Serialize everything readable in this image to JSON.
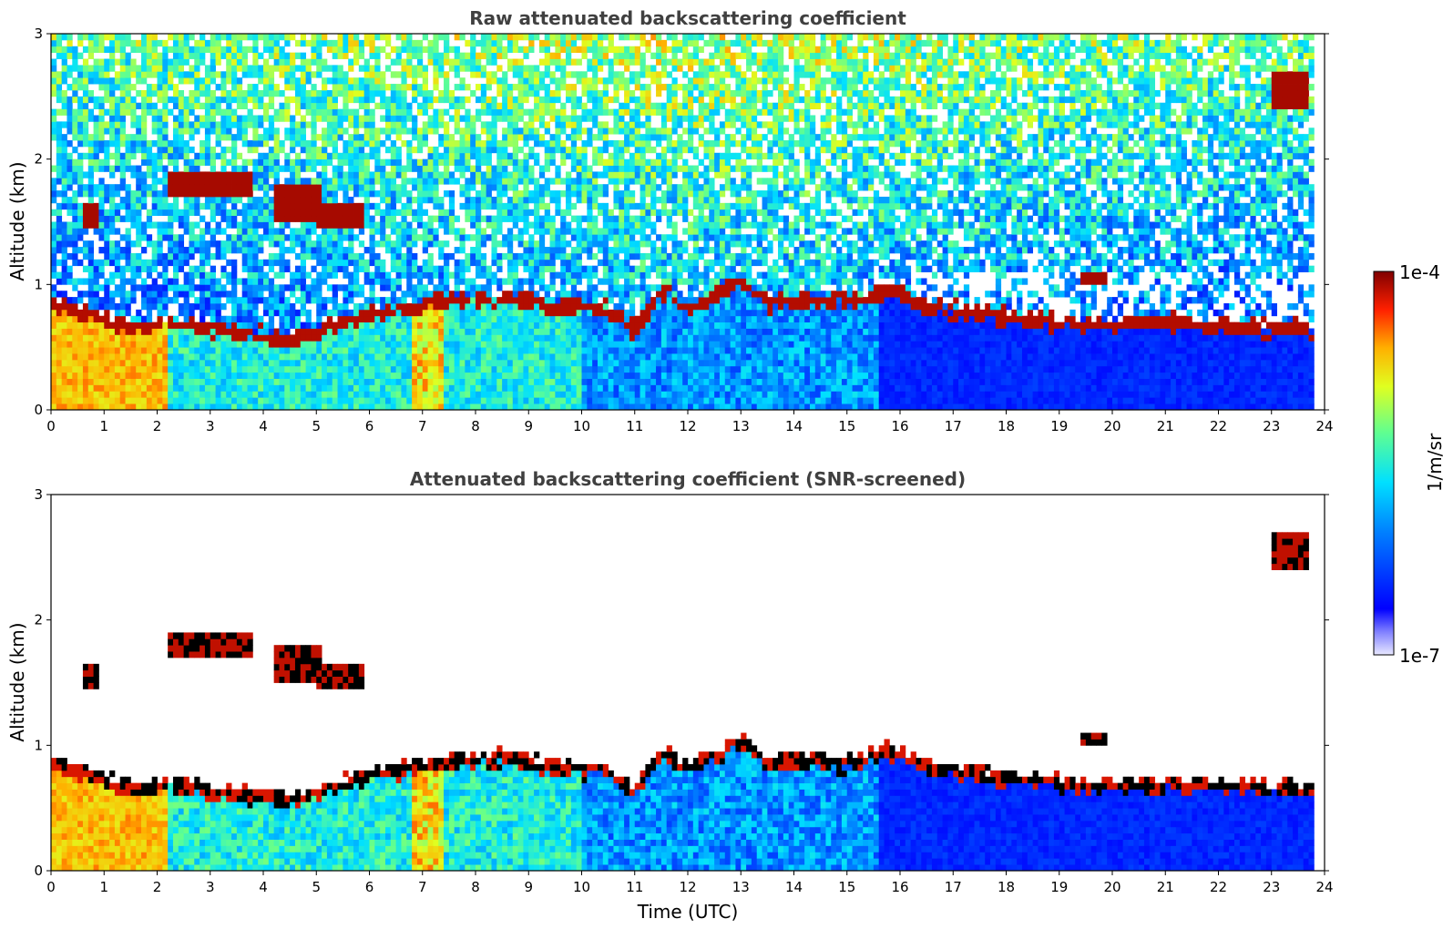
{
  "chart_data": [
    {
      "type": "heatmap",
      "title": "Raw attenuated backscattering coefficient",
      "xlabel": "",
      "ylabel": "Altitude (km)",
      "xlim": [
        0,
        24
      ],
      "ylim": [
        0,
        3
      ],
      "x_ticks": [
        "0",
        "1",
        "2",
        "3",
        "4",
        "5",
        "6",
        "7",
        "8",
        "9",
        "10",
        "11",
        "12",
        "13",
        "14",
        "15",
        "16",
        "17",
        "18",
        "19",
        "20",
        "21",
        "22",
        "23",
        "24"
      ],
      "y_ticks": [
        "0",
        "1",
        "2",
        "3"
      ],
      "screened": false,
      "colorbar": {
        "label": "1/m/sr",
        "min_label": "1e-7",
        "max_label": "1e-4",
        "scale": "log",
        "colormap": "jet"
      }
    },
    {
      "type": "heatmap",
      "title": "Attenuated backscattering coefficient (SNR-screened)",
      "xlabel": "Time (UTC)",
      "ylabel": "Altitude (km)",
      "xlim": [
        0,
        24
      ],
      "ylim": [
        0,
        3
      ],
      "x_ticks": [
        "0",
        "1",
        "2",
        "3",
        "4",
        "5",
        "6",
        "7",
        "8",
        "9",
        "10",
        "11",
        "12",
        "13",
        "14",
        "15",
        "16",
        "17",
        "18",
        "19",
        "20",
        "21",
        "22",
        "23",
        "24"
      ],
      "y_ticks": [
        "0",
        "1",
        "2",
        "3"
      ],
      "screened": true
    }
  ],
  "features": {
    "boundary_layer_top_km": [
      [
        0.0,
        0.85
      ],
      [
        1.5,
        0.65
      ],
      [
        2.2,
        0.7
      ],
      [
        3.5,
        0.62
      ],
      [
        4.5,
        0.55
      ],
      [
        5.5,
        0.7
      ],
      [
        6.5,
        0.8
      ],
      [
        7.5,
        0.88
      ],
      [
        8.5,
        0.9
      ],
      [
        9.5,
        0.82
      ],
      [
        10.5,
        0.8
      ],
      [
        11.0,
        0.62
      ],
      [
        11.5,
        0.95
      ],
      [
        12.0,
        0.8
      ],
      [
        12.5,
        0.9
      ],
      [
        13.0,
        1.05
      ],
      [
        13.5,
        0.85
      ],
      [
        14.0,
        0.88
      ],
      [
        15.0,
        0.85
      ],
      [
        15.8,
        0.95
      ],
      [
        16.5,
        0.83
      ],
      [
        17.5,
        0.76
      ],
      [
        18.5,
        0.72
      ],
      [
        19.5,
        0.67
      ],
      [
        20.5,
        0.68
      ],
      [
        21.0,
        0.7
      ],
      [
        22.0,
        0.67
      ],
      [
        22.9,
        0.65
      ]
    ],
    "cloud_patches_km": [
      {
        "t0": 0.6,
        "t1": 0.9,
        "z0": 1.45,
        "z1": 1.65
      },
      {
        "t0": 2.2,
        "t1": 3.8,
        "z0": 1.68,
        "z1": 1.88
      },
      {
        "t0": 4.2,
        "t1": 5.1,
        "z0": 1.52,
        "z1": 1.82
      },
      {
        "t0": 5.0,
        "t1": 5.9,
        "z0": 1.45,
        "z1": 1.65
      },
      {
        "t0": 23.0,
        "t1": 23.7,
        "z0": 2.4,
        "z1": 2.7
      },
      {
        "t0": 19.4,
        "t1": 19.9,
        "z0": 1.0,
        "z1": 1.12
      }
    ]
  }
}
